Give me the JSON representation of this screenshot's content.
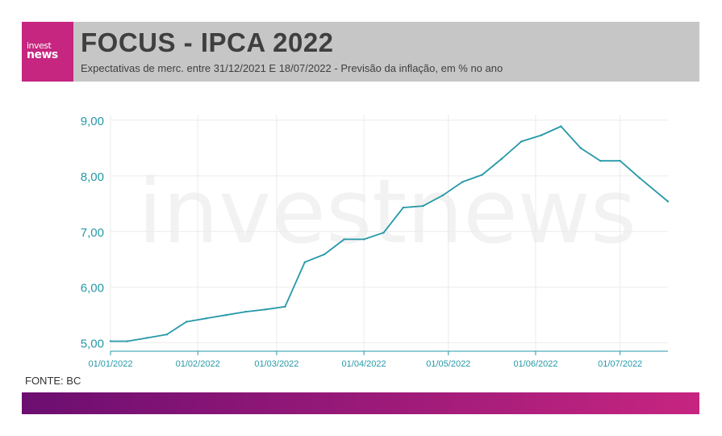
{
  "header": {
    "logo_top": "invest",
    "logo_bottom": "news",
    "title": "FOCUS - IPCA 2022",
    "subtitle": "Expectativas de merc. entre 31/12/2021 E 18/07/2022 - Previsão da inflação, em % no ano"
  },
  "footer": {
    "source": "FONTE: BC"
  },
  "watermark": "investnews",
  "colors": {
    "brand": "#c62580",
    "header_bg": "#c6c6c6",
    "line": "#2699a8",
    "axis_text": "#2699a8",
    "gradient_start": "#6c0e71",
    "gradient_end": "#c62580"
  },
  "chart_data": {
    "type": "line",
    "title": "",
    "xlabel": "",
    "ylabel": "",
    "xlim": [
      "2022-01-01",
      "2022-07-18"
    ],
    "ylim": [
      4.85,
      9.1
    ],
    "yticks": [
      5.0,
      6.0,
      7.0,
      8.0,
      9.0
    ],
    "ytick_labels": [
      "5,00",
      "6,00",
      "7,00",
      "8,00",
      "9,00"
    ],
    "xticks": [
      "2022-01-01",
      "2022-02-01",
      "2022-03-01",
      "2022-04-01",
      "2022-05-01",
      "2022-06-01",
      "2022-07-01"
    ],
    "xtick_labels": [
      "01/01/2022",
      "01/02/2022",
      "01/03/2022",
      "01/04/2022",
      "01/05/2022",
      "01/06/2022",
      "01/07/2022"
    ],
    "grid": true,
    "series": [
      {
        "x": [
          "2022-01-01",
          "2022-01-07",
          "2022-01-14",
          "2022-01-21",
          "2022-01-28",
          "2022-02-04",
          "2022-02-11",
          "2022-02-18",
          "2022-02-25",
          "2022-03-04",
          "2022-03-11",
          "2022-03-18",
          "2022-03-25",
          "2022-04-01",
          "2022-04-08",
          "2022-04-15",
          "2022-04-22",
          "2022-04-29",
          "2022-05-06",
          "2022-05-13",
          "2022-05-20",
          "2022-05-27",
          "2022-06-03",
          "2022-06-10",
          "2022-06-17",
          "2022-06-24",
          "2022-07-01",
          "2022-07-08",
          "2022-07-18"
        ],
        "values": [
          5.03,
          5.03,
          5.09,
          5.15,
          5.38,
          5.44,
          5.5,
          5.56,
          5.6,
          5.65,
          6.45,
          6.59,
          6.86,
          6.86,
          6.98,
          7.43,
          7.46,
          7.65,
          7.89,
          8.02,
          8.31,
          8.62,
          8.73,
          8.89,
          8.5,
          8.27,
          8.27,
          7.96,
          7.54
        ]
      }
    ]
  }
}
